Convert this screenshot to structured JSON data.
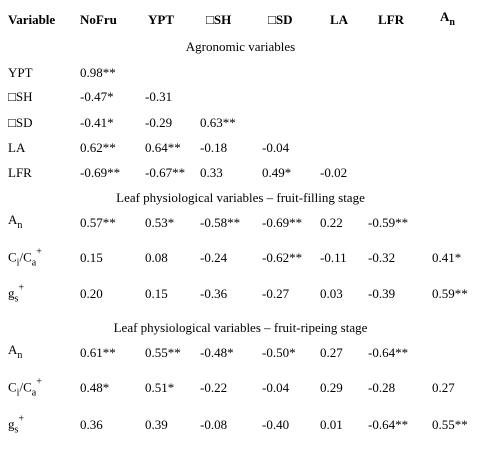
{
  "table": {
    "header": [
      [
        {
          "text": "Variable"
        }
      ],
      [
        {
          "text": "NoFru"
        }
      ],
      [
        {
          "text": "YPT"
        }
      ],
      [
        {
          "text": "□SH"
        }
      ],
      [
        {
          "text": "□SD"
        }
      ],
      [
        {
          "text": "LA"
        }
      ],
      [
        {
          "text": "LFR"
        }
      ],
      [
        {
          "text": "A"
        },
        {
          "text": "n",
          "pos": "sub"
        }
      ]
    ],
    "groups": [
      {
        "title": "Agronomic variables",
        "rows": [
          {
            "label": [
              {
                "text": "YPT"
              }
            ],
            "cells": [
              "0.98**"
            ]
          },
          {
            "label": [
              {
                "text": "□SH"
              }
            ],
            "cells": [
              "-0.47*",
              "-0.31"
            ]
          },
          {
            "label": [
              {
                "text": "□SD"
              }
            ],
            "cells": [
              "-0.41*",
              "-0.29",
              "0.63**"
            ]
          },
          {
            "label": [
              {
                "text": "LA"
              }
            ],
            "cells": [
              "0.62**",
              "0.64**",
              "-0.18",
              "-0.04"
            ]
          },
          {
            "label": [
              {
                "text": "LFR"
              }
            ],
            "cells": [
              "-0.69**",
              "-0.67**",
              "0.33",
              "0.49*",
              "-0.02"
            ]
          }
        ]
      },
      {
        "title": "Leaf physiological variables – fruit-filling stage",
        "rows": [
          {
            "label": [
              {
                "text": "A"
              },
              {
                "text": "n",
                "pos": "sub"
              }
            ],
            "cells": [
              "0.57**",
              "0.53*",
              "-0.58**",
              "-0.69**",
              "0.22",
              "-0.59**"
            ]
          },
          {
            "label": [
              {
                "text": "C"
              },
              {
                "text": "i",
                "pos": "sub"
              },
              {
                "text": "/C"
              },
              {
                "text": "a",
                "pos": "sub"
              },
              {
                "text": "+",
                "pos": "sup"
              }
            ],
            "cells": [
              "0.15",
              "0.08",
              "-0.24",
              "-0.62**",
              "-0.11",
              "-0.32",
              "0.41*"
            ]
          },
          {
            "label": [
              {
                "text": "g"
              },
              {
                "text": "s",
                "pos": "sub"
              },
              {
                "text": "+",
                "pos": "sup"
              }
            ],
            "cells": [
              "0.20",
              "0.15",
              "-0.36",
              "-0.27",
              "0.03",
              "-0.39",
              "0.59**"
            ]
          }
        ]
      },
      {
        "title": "Leaf physiological variables – fruit-ripeing stage",
        "rows": [
          {
            "label": [
              {
                "text": "A"
              },
              {
                "text": "n",
                "pos": "sub"
              }
            ],
            "cells": [
              "0.61**",
              "0.55**",
              "-0.48*",
              "-0.50*",
              "0.27",
              "-0.64**"
            ]
          },
          {
            "label": [
              {
                "text": "C"
              },
              {
                "text": "i",
                "pos": "sub"
              },
              {
                "text": "/C"
              },
              {
                "text": "a",
                "pos": "sub"
              },
              {
                "text": "+",
                "pos": "sup"
              }
            ],
            "cells": [
              "0.48*",
              "0.51*",
              "-0.22",
              "-0.04",
              "0.29",
              "-0.28",
              "0.27"
            ]
          },
          {
            "label": [
              {
                "text": "g"
              },
              {
                "text": "s",
                "pos": "sub"
              },
              {
                "text": "+",
                "pos": "sup"
              }
            ],
            "cells": [
              "0.36",
              "0.39",
              "-0.08",
              "-0.40",
              "0.01",
              "-0.64**",
              "0.55**"
            ]
          }
        ]
      }
    ]
  }
}
